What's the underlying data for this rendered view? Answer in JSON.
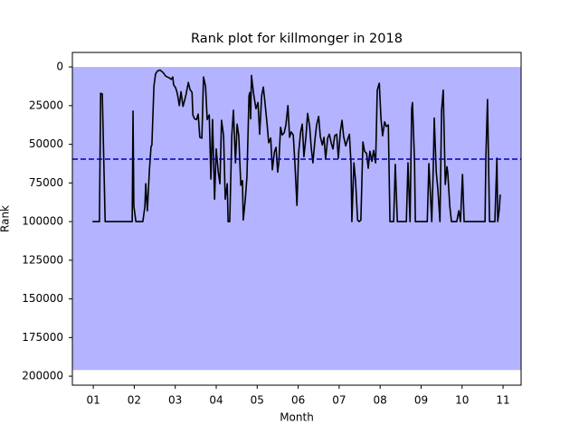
{
  "chart_data": {
    "type": "line",
    "title": "Rank plot for killmonger in 2018",
    "xlabel": "Month",
    "ylabel": "Rank",
    "x": [
      0.98,
      1.15,
      1.18,
      1.22,
      1.29,
      1.95,
      1.97,
      1.99,
      2.04,
      2.21,
      2.26,
      2.28,
      2.32,
      2.37,
      2.41,
      2.43,
      2.48,
      2.52,
      2.57,
      2.63,
      2.7,
      2.77,
      2.85,
      2.9,
      2.94,
      2.96,
      3.01,
      3.05,
      3.1,
      3.14,
      3.19,
      3.23,
      3.27,
      3.32,
      3.36,
      3.41,
      3.43,
      3.47,
      3.52,
      3.56,
      3.6,
      3.65,
      3.69,
      3.74,
      3.78,
      3.83,
      3.87,
      3.91,
      3.96,
      4.0,
      4.05,
      4.09,
      4.13,
      4.18,
      4.22,
      4.27,
      4.29,
      4.33,
      4.38,
      4.42,
      4.47,
      4.51,
      4.55,
      4.6,
      4.64,
      4.66,
      4.71,
      4.75,
      4.8,
      4.82,
      4.84,
      4.86,
      4.91,
      4.97,
      5.02,
      5.06,
      5.11,
      5.15,
      5.19,
      5.24,
      5.28,
      5.33,
      5.37,
      5.42,
      5.46,
      5.5,
      5.53,
      5.57,
      5.61,
      5.66,
      5.7,
      5.75,
      5.79,
      5.83,
      5.88,
      5.92,
      5.97,
      6.01,
      6.06,
      6.1,
      6.14,
      6.19,
      6.23,
      6.28,
      6.32,
      6.36,
      6.41,
      6.45,
      6.5,
      6.54,
      6.59,
      6.63,
      6.67,
      6.72,
      6.76,
      6.81,
      6.85,
      6.89,
      6.94,
      6.98,
      7.03,
      7.07,
      7.11,
      7.16,
      7.2,
      7.25,
      7.29,
      7.31,
      7.36,
      7.4,
      7.45,
      7.49,
      7.53,
      7.58,
      7.62,
      7.67,
      7.71,
      7.75,
      7.8,
      7.84,
      7.89,
      7.93,
      7.98,
      8.02,
      8.06,
      8.11,
      8.15,
      8.2,
      8.24,
      8.33,
      8.37,
      8.42,
      8.64,
      8.68,
      8.73,
      8.77,
      8.79,
      8.84,
      8.86,
      9.15,
      9.19,
      9.21,
      9.26,
      9.3,
      9.32,
      9.37,
      9.41,
      9.46,
      9.5,
      9.54,
      9.59,
      9.63,
      9.65,
      9.7,
      9.74,
      9.87,
      9.92,
      9.96,
      10.01,
      10.05,
      10.56,
      10.58,
      10.62,
      10.67,
      10.8,
      10.85,
      10.87,
      10.91,
      10.93
    ],
    "values": [
      100000,
      100000,
      17000,
      17500,
      100000,
      100000,
      28500,
      90000,
      100000,
      100000,
      90000,
      75500,
      93000,
      66500,
      51500,
      50500,
      12500,
      4500,
      2500,
      2000,
      3500,
      6000,
      7000,
      8000,
      6500,
      11500,
      13500,
      17000,
      25000,
      16000,
      25500,
      21500,
      17000,
      10000,
      14500,
      16500,
      31000,
      33500,
      34000,
      30500,
      45500,
      46000,
      6500,
      12500,
      34000,
      31000,
      72500,
      34000,
      85500,
      53000,
      68000,
      75500,
      34500,
      44500,
      85500,
      75500,
      100000,
      100000,
      44500,
      28000,
      62000,
      37000,
      44500,
      76500,
      73500,
      99000,
      85500,
      71000,
      18500,
      16500,
      33500,
      5500,
      17000,
      27000,
      23000,
      43500,
      18500,
      13000,
      23000,
      36500,
      49000,
      46000,
      66500,
      55000,
      52000,
      68000,
      61000,
      39000,
      44000,
      42500,
      37500,
      25000,
      45500,
      42000,
      44000,
      62000,
      89500,
      56000,
      42000,
      37000,
      58000,
      45000,
      30000,
      38500,
      52500,
      62000,
      47000,
      37500,
      32000,
      45000,
      50500,
      45500,
      59500,
      46000,
      43500,
      49500,
      53000,
      44500,
      43500,
      59000,
      41500,
      34500,
      45000,
      51000,
      47500,
      43500,
      62500,
      100000,
      62000,
      73500,
      99000,
      100000,
      99000,
      48500,
      54500,
      56000,
      65500,
      54500,
      61000,
      54000,
      62000,
      15000,
      10500,
      33000,
      44500,
      35500,
      38500,
      37500,
      100000,
      100000,
      63000,
      100000,
      100000,
      62000,
      100000,
      27000,
      23000,
      62000,
      100000,
      100000,
      62500,
      73500,
      100000,
      62000,
      33000,
      68000,
      79500,
      100000,
      28000,
      15000,
      76000,
      64500,
      68000,
      90000,
      100000,
      100000,
      93000,
      100000,
      69500,
      100000,
      100000,
      59000,
      21000,
      100000,
      100000,
      59000,
      100000,
      91500,
      82500
    ],
    "color": "#000000",
    "shaded_range": [
      0,
      196000
    ],
    "shaded_color": "#b3b3ff",
    "reference_line": 59600,
    "reference_color": "#0000b3",
    "xlim": [
      0.49,
      11.44
    ],
    "xticks": [
      {
        "value": 1,
        "label": "01"
      },
      {
        "value": 2,
        "label": "02"
      },
      {
        "value": 3,
        "label": "03"
      },
      {
        "value": 4,
        "label": "04"
      },
      {
        "value": 5,
        "label": "05"
      },
      {
        "value": 6,
        "label": "06"
      },
      {
        "value": 7,
        "label": "07"
      },
      {
        "value": 8,
        "label": "08"
      },
      {
        "value": 9,
        "label": "09"
      },
      {
        "value": 10,
        "label": "10"
      },
      {
        "value": 11,
        "label": "11"
      }
    ],
    "ylim": [
      205800,
      -9400
    ],
    "yticks": [
      0,
      25000,
      50000,
      75000,
      100000,
      125000,
      150000,
      175000,
      200000
    ],
    "grid": false
  }
}
